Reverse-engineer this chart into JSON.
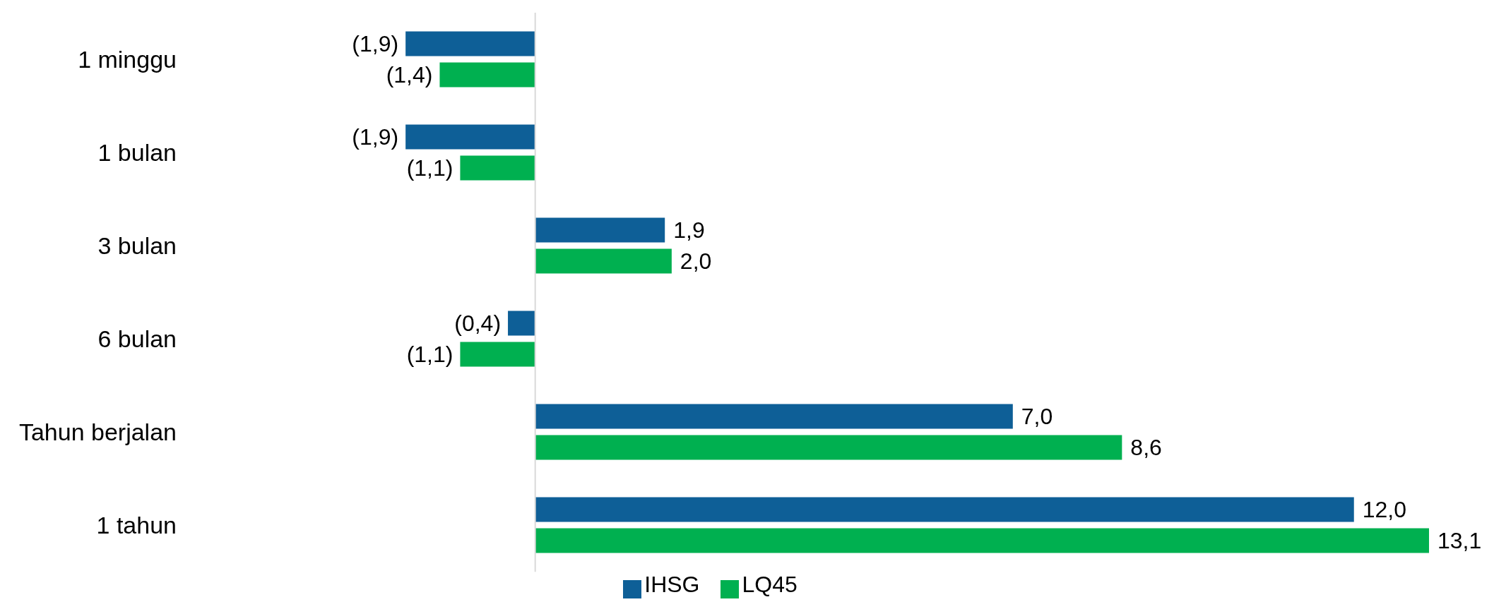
{
  "chart_data": {
    "type": "bar",
    "orientation": "horizontal",
    "categories": [
      "1 minggu",
      "1 bulan",
      "3 bulan",
      "6 bulan",
      "Tahun berjalan",
      "1 tahun"
    ],
    "series": [
      {
        "name": "IHSG",
        "color": "#0e5f97",
        "values": [
          -1.9,
          -1.9,
          1.9,
          -0.4,
          7.0,
          12.0
        ],
        "value_labels": [
          "(1,9)",
          "(1,9)",
          "1,9",
          "(0,4)",
          "7,0",
          "12,0"
        ]
      },
      {
        "name": "LQ45",
        "color": "#00b050",
        "values": [
          -1.4,
          -1.1,
          2.0,
          -1.1,
          8.6,
          13.1
        ],
        "value_labels": [
          "(1,4)",
          "(1,1)",
          "2,0",
          "(1,1)",
          "8,6",
          "13,1"
        ]
      }
    ],
    "legend": "bottom",
    "grid": false
  }
}
